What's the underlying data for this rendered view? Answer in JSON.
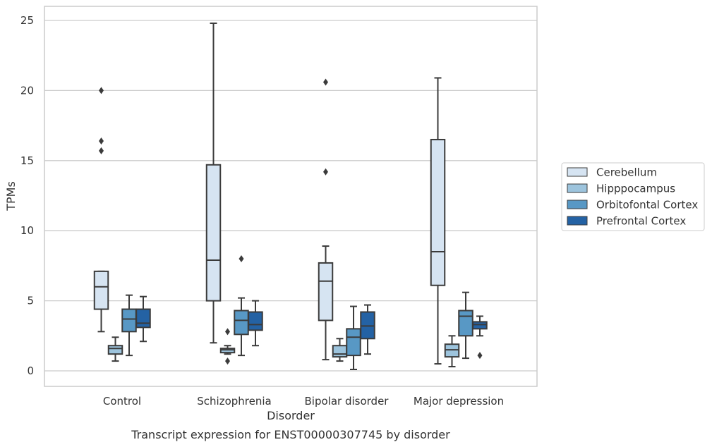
{
  "chart_data": {
    "type": "box",
    "xlabel": "Disorder",
    "ylabel": "TPMs",
    "caption": "Transcript expression for ENST00000307745 by disorder",
    "ylim": [
      -1.1,
      26
    ],
    "yticks": [
      0,
      5,
      10,
      15,
      20,
      25
    ],
    "grid": "horizontal",
    "legend_position": "right",
    "categories": [
      "Control",
      "Schizophrenia",
      "Bipolar disorder",
      "Major depression"
    ],
    "series": [
      {
        "name": "Cerebellum",
        "color": "#d6e4f2",
        "boxes": [
          {
            "whisker_low": 2.8,
            "q1": 4.4,
            "median": 6.0,
            "q3": 7.1,
            "whisker_high": 7.1,
            "outliers": [
              15.7,
              16.4,
              20.0
            ]
          },
          {
            "whisker_low": 2.0,
            "q1": 5.0,
            "median": 7.9,
            "q3": 14.7,
            "whisker_high": 24.8,
            "outliers": []
          },
          {
            "whisker_low": 0.8,
            "q1": 3.6,
            "median": 6.4,
            "q3": 7.7,
            "whisker_high": 8.9,
            "outliers": [
              14.2,
              20.6
            ]
          },
          {
            "whisker_low": 0.5,
            "q1": 6.1,
            "median": 8.5,
            "q3": 16.5,
            "whisker_high": 20.9,
            "outliers": []
          }
        ]
      },
      {
        "name": "Hipppocampus",
        "color": "#9dc4dd",
        "boxes": [
          {
            "whisker_low": 0.7,
            "q1": 1.2,
            "median": 1.6,
            "q3": 1.8,
            "whisker_high": 2.4,
            "outliers": []
          },
          {
            "whisker_low": 1.2,
            "q1": 1.3,
            "median": 1.5,
            "q3": 1.6,
            "whisker_high": 1.8,
            "outliers": [
              0.7,
              2.8
            ]
          },
          {
            "whisker_low": 0.7,
            "q1": 1.0,
            "median": 1.2,
            "q3": 1.8,
            "whisker_high": 2.3,
            "outliers": []
          },
          {
            "whisker_low": 0.3,
            "q1": 1.0,
            "median": 1.5,
            "q3": 1.9,
            "whisker_high": 2.5,
            "outliers": []
          }
        ]
      },
      {
        "name": "Orbitofontal Cortex",
        "color": "#5898c5",
        "boxes": [
          {
            "whisker_low": 1.1,
            "q1": 2.8,
            "median": 3.7,
            "q3": 4.4,
            "whisker_high": 5.4,
            "outliers": []
          },
          {
            "whisker_low": 1.1,
            "q1": 2.6,
            "median": 3.6,
            "q3": 4.3,
            "whisker_high": 5.2,
            "outliers": [
              8.0
            ]
          },
          {
            "whisker_low": 0.1,
            "q1": 1.1,
            "median": 2.4,
            "q3": 3.0,
            "whisker_high": 4.6,
            "outliers": []
          },
          {
            "whisker_low": 0.9,
            "q1": 2.5,
            "median": 3.9,
            "q3": 4.3,
            "whisker_high": 5.6,
            "outliers": []
          }
        ]
      },
      {
        "name": "Prefrontal Cortex",
        "color": "#2462a4",
        "boxes": [
          {
            "whisker_low": 2.1,
            "q1": 3.1,
            "median": 3.4,
            "q3": 4.4,
            "whisker_high": 5.3,
            "outliers": []
          },
          {
            "whisker_low": 1.8,
            "q1": 2.9,
            "median": 3.3,
            "q3": 4.2,
            "whisker_high": 5.0,
            "outliers": []
          },
          {
            "whisker_low": 1.2,
            "q1": 2.3,
            "median": 3.2,
            "q3": 4.2,
            "whisker_high": 4.7,
            "outliers": []
          },
          {
            "whisker_low": 2.5,
            "q1": 3.0,
            "median": 3.3,
            "q3": 3.5,
            "whisker_high": 3.9,
            "outliers": [
              1.1
            ]
          }
        ]
      }
    ]
  }
}
